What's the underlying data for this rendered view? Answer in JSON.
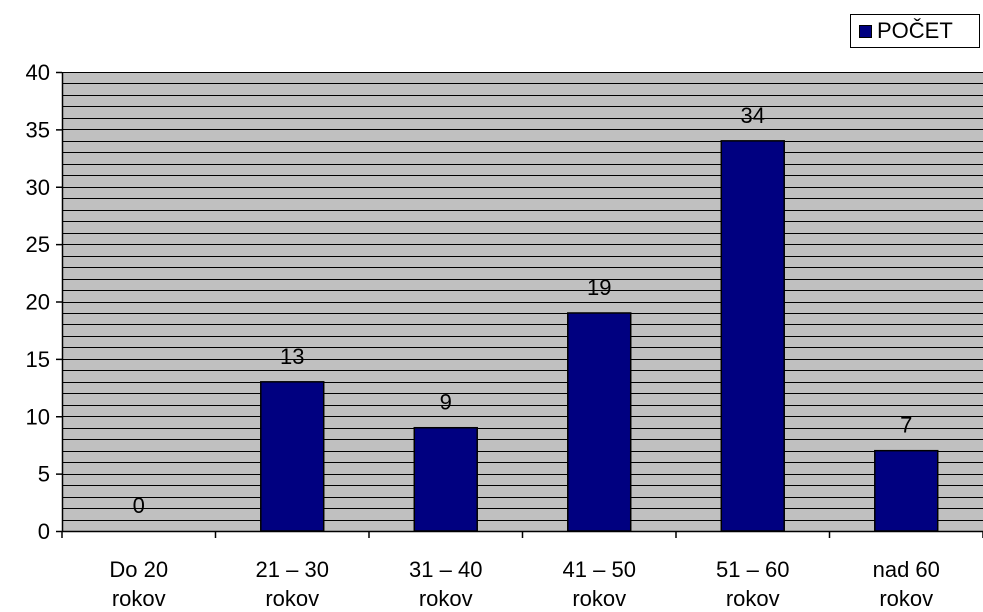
{
  "chart_data": {
    "type": "bar",
    "categories": [
      [
        "Do 20",
        "rokov"
      ],
      [
        "21 – 30",
        "rokov"
      ],
      [
        "31 – 40",
        "rokov"
      ],
      [
        "41 – 50",
        "rokov"
      ],
      [
        "51 – 60",
        "rokov"
      ],
      [
        "nad 60",
        "rokov"
      ]
    ],
    "series": [
      {
        "name": "POČET",
        "values": [
          0,
          13,
          9,
          19,
          34,
          7
        ]
      }
    ],
    "data_labels": [
      "0",
      "13",
      "9",
      "19",
      "34",
      "7"
    ],
    "yticks": [
      0,
      5,
      10,
      15,
      20,
      25,
      30,
      35,
      40
    ],
    "ylim": [
      0,
      40
    ],
    "minor_gridline_step": 1,
    "grid": true,
    "legend_position": "top-right",
    "colors": {
      "bar": "#000080",
      "plot_background": "#c0c0c0",
      "gridline": "#000000"
    }
  }
}
